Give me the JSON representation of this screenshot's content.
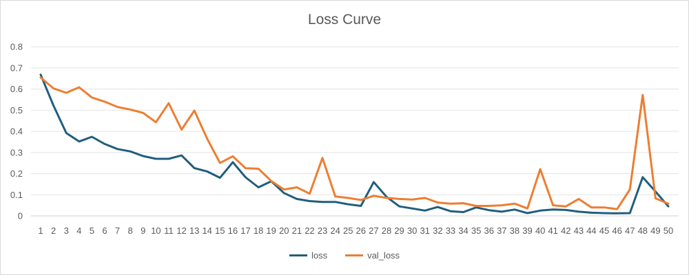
{
  "chart_data": {
    "type": "line",
    "title": "Loss Curve",
    "xlabel": "",
    "ylabel": "",
    "categories": [
      "1",
      "2",
      "3",
      "4",
      "5",
      "6",
      "7",
      "8",
      "9",
      "10",
      "11",
      "12",
      "13",
      "14",
      "15",
      "16",
      "17",
      "18",
      "19",
      "20",
      "21",
      "22",
      "23",
      "24",
      "25",
      "26",
      "27",
      "28",
      "29",
      "30",
      "31",
      "32",
      "33",
      "34",
      "35",
      "36",
      "37",
      "38",
      "39",
      "40",
      "41",
      "42",
      "43",
      "44",
      "45",
      "46",
      "47",
      "48",
      "49",
      "50"
    ],
    "ylim": [
      0,
      0.8
    ],
    "yticks": [
      "0",
      "0.1",
      "0.2",
      "0.3",
      "0.4",
      "0.5",
      "0.6",
      "0.7",
      "0.8"
    ],
    "grid": true,
    "legend_position": "bottom",
    "series": [
      {
        "name": "loss",
        "color": "#1f5e7e",
        "values": [
          0.668,
          0.522,
          0.392,
          0.352,
          0.374,
          0.34,
          0.316,
          0.305,
          0.283,
          0.27,
          0.27,
          0.286,
          0.226,
          0.21,
          0.18,
          0.254,
          0.182,
          0.135,
          0.164,
          0.108,
          0.08,
          0.07,
          0.066,
          0.066,
          0.055,
          0.047,
          0.16,
          0.09,
          0.045,
          0.035,
          0.025,
          0.042,
          0.022,
          0.018,
          0.04,
          0.027,
          0.02,
          0.03,
          0.013,
          0.025,
          0.03,
          0.028,
          0.02,
          0.015,
          0.013,
          0.012,
          0.013,
          0.183,
          0.115,
          0.045
        ]
      },
      {
        "name": "val_loss",
        "color": "#ed7d31",
        "values": [
          0.655,
          0.603,
          0.582,
          0.608,
          0.56,
          0.54,
          0.515,
          0.503,
          0.487,
          0.443,
          0.533,
          0.408,
          0.498,
          0.365,
          0.25,
          0.282,
          0.225,
          0.223,
          0.165,
          0.125,
          0.135,
          0.105,
          0.274,
          0.092,
          0.085,
          0.075,
          0.095,
          0.085,
          0.08,
          0.077,
          0.085,
          0.063,
          0.058,
          0.06,
          0.047,
          0.047,
          0.05,
          0.058,
          0.035,
          0.221,
          0.05,
          0.045,
          0.08,
          0.04,
          0.04,
          0.032,
          0.125,
          0.572,
          0.083,
          0.058
        ]
      }
    ]
  }
}
